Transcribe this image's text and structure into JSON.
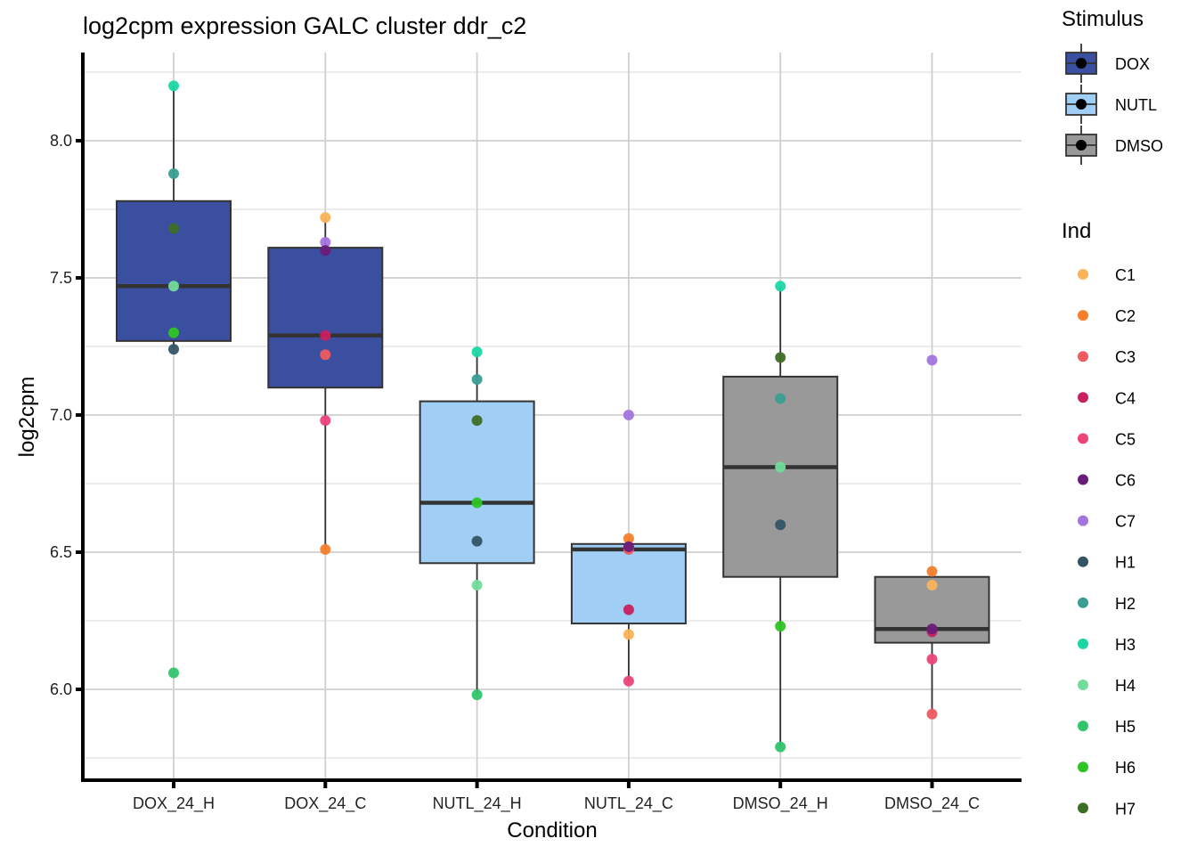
{
  "chart_data": {
    "type": "boxplot",
    "title": "log2cpm expression GALC cluster ddr_c2",
    "xlabel": "Condition",
    "ylabel": "log2cpm",
    "ylim": [
      5.69,
      8.34
    ],
    "yticks": [
      6.0,
      6.5,
      7.0,
      7.5,
      8.0
    ],
    "ytick_labels": [
      "6.0",
      "6.5",
      "7.0",
      "7.5",
      "8.0"
    ],
    "grid": true,
    "categories": [
      "DOX_24_H",
      "DOX_24_C",
      "NUTL_24_H",
      "NUTL_24_C",
      "DMSO_24_H",
      "DMSO_24_C"
    ],
    "boxes": [
      {
        "category": "DOX_24_H",
        "stimulus": "DOX",
        "whisker_low": 7.24,
        "q1": 7.27,
        "median": 7.47,
        "q3": 7.78,
        "whisker_high": 8.2
      },
      {
        "category": "DOX_24_C",
        "stimulus": "DOX",
        "whisker_low": 6.51,
        "q1": 7.1,
        "median": 7.29,
        "q3": 7.61,
        "whisker_high": 7.72
      },
      {
        "category": "NUTL_24_H",
        "stimulus": "NUTL",
        "whisker_low": 5.98,
        "q1": 6.46,
        "median": 6.68,
        "q3": 7.05,
        "whisker_high": 7.23
      },
      {
        "category": "NUTL_24_C",
        "stimulus": "NUTL",
        "whisker_low": 6.03,
        "q1": 6.24,
        "median": 6.51,
        "q3": 6.53,
        "whisker_high": 6.55
      },
      {
        "category": "DMSO_24_H",
        "stimulus": "DMSO",
        "whisker_low": 5.79,
        "q1": 6.41,
        "median": 6.81,
        "q3": 7.14,
        "whisker_high": 7.47
      },
      {
        "category": "DMSO_24_C",
        "stimulus": "DMSO",
        "whisker_low": 5.91,
        "q1": 6.17,
        "median": 6.22,
        "q3": 6.41,
        "whisker_high": 6.43
      }
    ],
    "points": [
      {
        "category": "DOX_24_H",
        "ind": "H3",
        "value": 8.2
      },
      {
        "category": "DOX_24_H",
        "ind": "H2",
        "value": 7.88
      },
      {
        "category": "DOX_24_H",
        "ind": "H7",
        "value": 7.68
      },
      {
        "category": "DOX_24_H",
        "ind": "H4",
        "value": 7.47
      },
      {
        "category": "DOX_24_H",
        "ind": "H6",
        "value": 7.3
      },
      {
        "category": "DOX_24_H",
        "ind": "H1",
        "value": 7.24
      },
      {
        "category": "DOX_24_H",
        "ind": "H5",
        "value": 6.06
      },
      {
        "category": "DOX_24_C",
        "ind": "C1",
        "value": 7.72
      },
      {
        "category": "DOX_24_C",
        "ind": "C7",
        "value": 7.63
      },
      {
        "category": "DOX_24_C",
        "ind": "C6",
        "value": 7.6
      },
      {
        "category": "DOX_24_C",
        "ind": "C4",
        "value": 7.29
      },
      {
        "category": "DOX_24_C",
        "ind": "C3",
        "value": 7.22
      },
      {
        "category": "DOX_24_C",
        "ind": "C5",
        "value": 6.98
      },
      {
        "category": "DOX_24_C",
        "ind": "C2",
        "value": 6.51
      },
      {
        "category": "NUTL_24_H",
        "ind": "H3",
        "value": 7.23
      },
      {
        "category": "NUTL_24_H",
        "ind": "H2",
        "value": 7.13
      },
      {
        "category": "NUTL_24_H",
        "ind": "H7",
        "value": 6.98
      },
      {
        "category": "NUTL_24_H",
        "ind": "H6",
        "value": 6.68
      },
      {
        "category": "NUTL_24_H",
        "ind": "H1",
        "value": 6.54
      },
      {
        "category": "NUTL_24_H",
        "ind": "H4",
        "value": 6.38
      },
      {
        "category": "NUTL_24_H",
        "ind": "H5",
        "value": 5.98
      },
      {
        "category": "NUTL_24_C",
        "ind": "C7",
        "value": 7.0
      },
      {
        "category": "NUTL_24_C",
        "ind": "C2",
        "value": 6.55
      },
      {
        "category": "NUTL_24_C",
        "ind": "C3",
        "value": 6.51
      },
      {
        "category": "NUTL_24_C",
        "ind": "C6",
        "value": 6.52
      },
      {
        "category": "NUTL_24_C",
        "ind": "C4",
        "value": 6.29
      },
      {
        "category": "NUTL_24_C",
        "ind": "C1",
        "value": 6.2
      },
      {
        "category": "NUTL_24_C",
        "ind": "C5",
        "value": 6.03
      },
      {
        "category": "DMSO_24_H",
        "ind": "H3",
        "value": 7.47
      },
      {
        "category": "DMSO_24_H",
        "ind": "H7",
        "value": 7.21
      },
      {
        "category": "DMSO_24_H",
        "ind": "H2",
        "value": 7.06
      },
      {
        "category": "DMSO_24_H",
        "ind": "H4",
        "value": 6.81
      },
      {
        "category": "DMSO_24_H",
        "ind": "H1",
        "value": 6.6
      },
      {
        "category": "DMSO_24_H",
        "ind": "H6",
        "value": 6.23
      },
      {
        "category": "DMSO_24_H",
        "ind": "H5",
        "value": 5.79
      },
      {
        "category": "DMSO_24_C",
        "ind": "C7",
        "value": 7.2
      },
      {
        "category": "DMSO_24_C",
        "ind": "C2",
        "value": 6.43
      },
      {
        "category": "DMSO_24_C",
        "ind": "C1",
        "value": 6.38
      },
      {
        "category": "DMSO_24_C",
        "ind": "C4",
        "value": 6.21
      },
      {
        "category": "DMSO_24_C",
        "ind": "C6",
        "value": 6.22
      },
      {
        "category": "DMSO_24_C",
        "ind": "C5",
        "value": 6.11
      },
      {
        "category": "DMSO_24_C",
        "ind": "C3",
        "value": 5.91
      }
    ],
    "legend_stimulus": {
      "title": "Stimulus",
      "placement": "right",
      "items": [
        {
          "label": "DOX",
          "color": "#3B4FA0"
        },
        {
          "label": "NUTL",
          "color": "#A0CEF5"
        },
        {
          "label": "DMSO",
          "color": "#999999"
        }
      ]
    },
    "legend_ind": {
      "title": "Ind",
      "placement": "right",
      "items": [
        {
          "label": "C1",
          "color": "#FBB357"
        },
        {
          "label": "C2",
          "color": "#F67E2B"
        },
        {
          "label": "C3",
          "color": "#EE5A5F"
        },
        {
          "label": "C4",
          "color": "#C82160"
        },
        {
          "label": "C5",
          "color": "#EC4579"
        },
        {
          "label": "C6",
          "color": "#6A1C7A"
        },
        {
          "label": "C7",
          "color": "#A374DE"
        },
        {
          "label": "H1",
          "color": "#345466"
        },
        {
          "label": "H2",
          "color": "#3A9E93"
        },
        {
          "label": "H3",
          "color": "#1BD6A3"
        },
        {
          "label": "H4",
          "color": "#72DC9A"
        },
        {
          "label": "H5",
          "color": "#31C46A"
        },
        {
          "label": "H6",
          "color": "#2DC523"
        },
        {
          "label": "H7",
          "color": "#3E6E25"
        }
      ]
    }
  }
}
